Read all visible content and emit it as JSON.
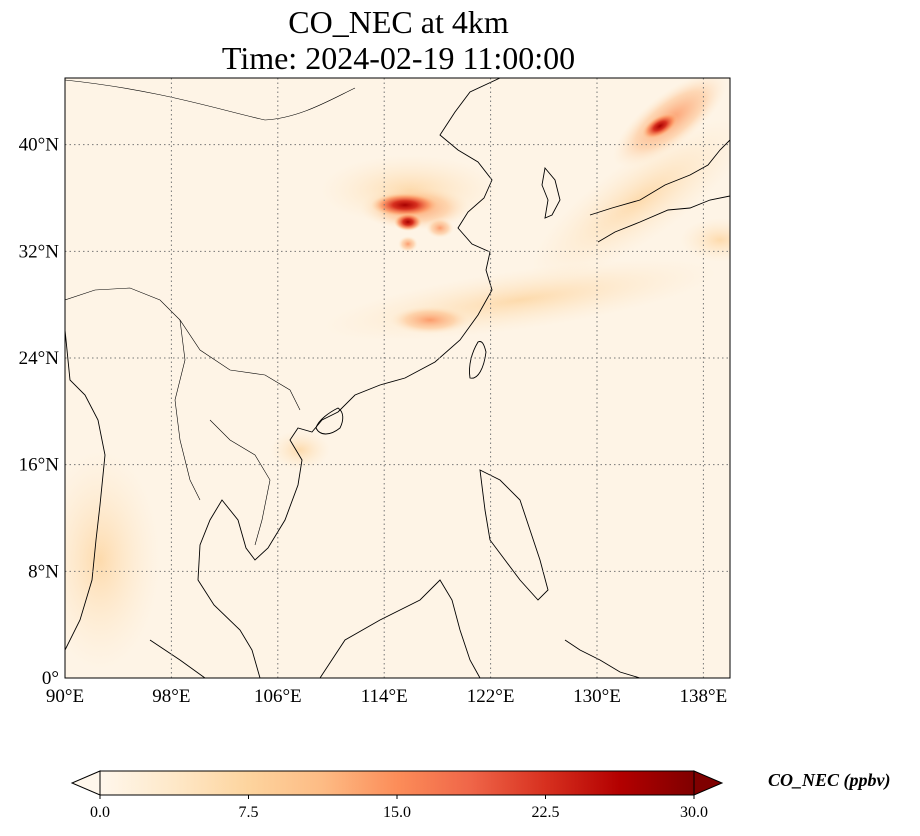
{
  "title": {
    "line1": "CO_NEC at 4km",
    "line2": "Time: 2024-02-19 11:00:00"
  },
  "map": {
    "variable": "CO_NEC",
    "extent": {
      "lon_min": 90,
      "lon_max": 140,
      "lat_min": 0,
      "lat_max": 45
    },
    "lon_ticks": [
      {
        "value": 90,
        "label": "90°E"
      },
      {
        "value": 98,
        "label": "98°E"
      },
      {
        "value": 106,
        "label": "106°E"
      },
      {
        "value": 114,
        "label": "114°E"
      },
      {
        "value": 122,
        "label": "122°E"
      },
      {
        "value": 130,
        "label": "130°E"
      },
      {
        "value": 138,
        "label": "138°E"
      }
    ],
    "lat_ticks": [
      {
        "value": 0,
        "label": "0°"
      },
      {
        "value": 8,
        "label": "8°N"
      },
      {
        "value": 16,
        "label": "16°N"
      },
      {
        "value": 24,
        "label": "24°N"
      },
      {
        "value": 32,
        "label": "32°N"
      },
      {
        "value": 40,
        "label": "40°N"
      }
    ],
    "gridlines": true,
    "colormap": "OrRd"
  },
  "colorbar": {
    "label": "CO_NEC (ppbv)",
    "min": 0,
    "max": 30,
    "extend": "both",
    "ticks": [
      "0.0",
      "7.5",
      "15.0",
      "22.5",
      "30.0"
    ],
    "tick_values": [
      0,
      7.5,
      15,
      22.5,
      30
    ],
    "colors": [
      "#fff7ec",
      "#fee8c8",
      "#fdd49e",
      "#fdbb84",
      "#fc8d59",
      "#ef6548",
      "#d7301f",
      "#b30000",
      "#7f0000"
    ]
  }
}
